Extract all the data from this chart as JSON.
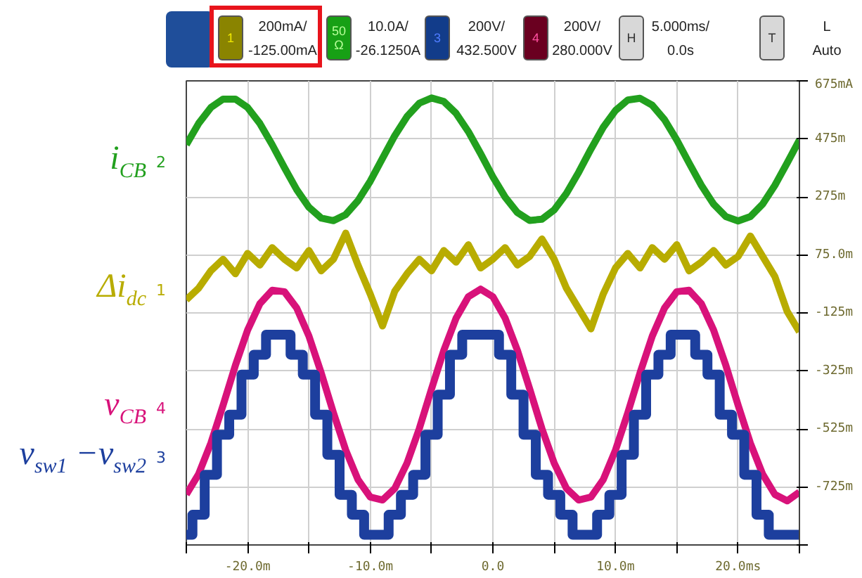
{
  "chart_data": {
    "type": "line",
    "x": [
      -25,
      -24,
      -23,
      -22,
      -21,
      -20,
      -19,
      -18,
      -17,
      -16,
      -15,
      -14,
      -13,
      -12,
      -11,
      -10,
      -9,
      -8,
      -7,
      -6,
      -5,
      -4,
      -3,
      -2,
      -1,
      0,
      1,
      2,
      3,
      4,
      5,
      6,
      7,
      8,
      9,
      10,
      11,
      12,
      13,
      14,
      15,
      16,
      17,
      18,
      19,
      20,
      21,
      22,
      23,
      24,
      25
    ],
    "series": [
      {
        "name": "i$_{CB}$",
        "color": "#22a01e",
        "values": [
          455,
          528,
          583,
          612,
          612,
          583,
          528,
          455,
          376,
          300,
          239,
          202,
          193,
          214,
          262,
          329,
          408,
          486,
          552,
          598,
          616,
          604,
          563,
          500,
          424,
          344,
          274,
          221,
          194,
          198,
          230,
          287,
          360,
          440,
          515,
          573,
          609,
          615,
          591,
          541,
          471,
          392,
          315,
          250,
          207,
          192,
          207,
          250,
          315,
          392,
          471
        ]
      },
      {
        "name": "Δi$_{dc}$",
        "color": "#b8ac00",
        "values": [
          -80,
          -40,
          20,
          60,
          10,
          80,
          40,
          100,
          60,
          30,
          90,
          20,
          60,
          150,
          40,
          -60,
          -170,
          -50,
          10,
          60,
          20,
          90,
          50,
          110,
          30,
          60,
          100,
          40,
          70,
          130,
          60,
          -40,
          -110,
          -180,
          -60,
          30,
          80,
          30,
          100,
          60,
          110,
          20,
          50,
          90,
          40,
          70,
          140,
          70,
          0,
          -120,
          -190
        ]
      },
      {
        "name": "v$_{CB}$",
        "color": "#d8127a",
        "values": [
          -751,
          -681,
          -574,
          -443,
          -306,
          -184,
          -93,
          -47,
          -52,
          -108,
          -205,
          -332,
          -470,
          -598,
          -700,
          -760,
          -770,
          -730,
          -643,
          -524,
          -387,
          -254,
          -143,
          -69,
          -43,
          -69,
          -143,
          -254,
          -387,
          -524,
          -643,
          -730,
          -770,
          -760,
          -700,
          -598,
          -470,
          -332,
          -205,
          -108,
          -52,
          -47,
          -93,
          -184,
          -306,
          -443,
          -574,
          -681,
          -751,
          -773,
          -743
        ]
      },
      {
        "name": "v$_{sw1}$ −v$_{sw2}$",
        "type": "step",
        "color": "#1d3f9e",
        "values": [
          -890,
          -821,
          -683,
          -545,
          -476,
          -338,
          -269,
          -200,
          -200,
          -269,
          -338,
          -476,
          -614,
          -752,
          -821,
          -890,
          -890,
          -821,
          -752,
          -683,
          -545,
          -407,
          -269,
          -200,
          -200,
          -200,
          -269,
          -407,
          -545,
          -683,
          -752,
          -821,
          -890,
          -890,
          -821,
          -752,
          -614,
          -476,
          -338,
          -269,
          -200,
          -200,
          -269,
          -338,
          -476,
          -545,
          -683,
          -821,
          -890,
          -890,
          -890
        ]
      }
    ],
    "xlim": [
      -25,
      25
    ],
    "xticks": [
      {
        "value": -25,
        "label": null
      },
      {
        "value": -20,
        "label": "-20.0m"
      },
      {
        "value": -15,
        "label": null
      },
      {
        "value": -10,
        "label": "-10.0m"
      },
      {
        "value": -5,
        "label": null
      },
      {
        "value": 0,
        "label": "0.0"
      },
      {
        "value": 5,
        "label": null
      },
      {
        "value": 10,
        "label": "10.0m"
      },
      {
        "value": 15,
        "label": null
      },
      {
        "value": 20,
        "label": "20.0ms"
      },
      {
        "value": 25,
        "label": null
      }
    ],
    "ylim": [
      -925,
      675
    ],
    "yticks": [
      {
        "value": -925,
        "label": null
      },
      {
        "value": -725,
        "label": "-725m"
      },
      {
        "value": -525,
        "label": "-525m"
      },
      {
        "value": -325,
        "label": "-325m"
      },
      {
        "value": -125,
        "label": "-125m"
      },
      {
        "value": 75,
        "label": "75.0m"
      },
      {
        "value": 275,
        "label": "275m"
      },
      {
        "value": 475,
        "label": "475m"
      },
      {
        "value": 675,
        "label": "675mA"
      }
    ],
    "grid": true,
    "annotations": [
      "1",
      "200mA/",
      "-125.00mA",
      "50Ω",
      "10.0A/",
      "-26.1250A",
      "3",
      "200V/",
      "432.500V",
      "4",
      "200V/",
      "280.000V",
      "H",
      "5.000ms/",
      "0.0s",
      "T",
      "L",
      "Auto",
      "2",
      "1",
      "4",
      "3"
    ]
  }
}
